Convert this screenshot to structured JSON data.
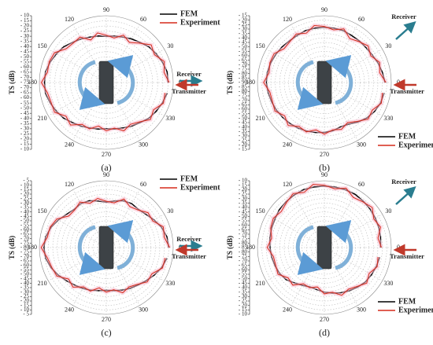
{
  "chart_data": [
    {
      "type": "polar",
      "label": "(a)",
      "ylabel": "TS (dB)",
      "legend": "upper right",
      "annotations": [
        "Receiver",
        "Transmitter"
      ],
      "theta": [
        0,
        10,
        20,
        30,
        40,
        50,
        60,
        70,
        80,
        90,
        100,
        110,
        120,
        130,
        140,
        150,
        160,
        170,
        180,
        190,
        200,
        210,
        220,
        230,
        240,
        250,
        260,
        270,
        280,
        290,
        300,
        310,
        320,
        330,
        340,
        350
      ],
      "angle_ticks": [
        0,
        30,
        60,
        90,
        120,
        150,
        180,
        210,
        240,
        270,
        300,
        330
      ],
      "rlim": [
        -75,
        -10
      ],
      "rticks": [
        {
          "value": -75,
          "label": "- 75"
        },
        {
          "value": -70,
          "label": "- 70"
        },
        {
          "value": -65,
          "label": "- 65"
        },
        {
          "value": -60,
          "label": "- 60"
        },
        {
          "value": -55,
          "label": "- 55"
        },
        {
          "value": -50,
          "label": "- 50"
        },
        {
          "value": -45,
          "label": "- 45"
        },
        {
          "value": -40,
          "label": "- 40"
        },
        {
          "value": -35,
          "label": "- 35"
        },
        {
          "value": -30,
          "label": "- 30"
        },
        {
          "value": -25,
          "label": "- 25"
        },
        {
          "value": -20,
          "label": "- 20"
        },
        {
          "value": -15,
          "label": "- 15"
        },
        {
          "value": -10,
          "label": "- 10"
        }
      ],
      "series": [
        {
          "name": "FEM",
          "color": "#000000",
          "values": [
            -15,
            -15,
            -17,
            -19,
            -21,
            -24,
            -26,
            -28,
            -29,
            -30,
            -29,
            -28,
            -26,
            -24,
            -21,
            -19,
            -17,
            -15,
            -15,
            -15,
            -17,
            -19,
            -21,
            -24,
            -26,
            -28,
            -29,
            -30,
            -29,
            -28,
            -26,
            -24,
            -21,
            -19,
            -17,
            -15
          ]
        },
        {
          "name": "Experiment",
          "color": "#d62a1a",
          "values": [
            -14,
            -18,
            -15,
            -21,
            -18,
            -25,
            -30,
            -26,
            -31,
            -29,
            -26,
            -31,
            -24,
            -25,
            -24,
            -17,
            -16,
            -17,
            -12,
            -17,
            -18,
            -17,
            -24,
            -21,
            -28,
            -27,
            -32,
            -28,
            -30,
            -25,
            -28,
            -25,
            -19,
            -22,
            -16,
            -17
          ]
        }
      ]
    },
    {
      "type": "polar",
      "label": "(b)",
      "ylabel": "TS (dB)",
      "legend": "lower right",
      "annotations": [
        "Receiver",
        "Transmitter"
      ],
      "theta": [
        0,
        10,
        20,
        30,
        40,
        50,
        60,
        70,
        80,
        90,
        100,
        110,
        120,
        130,
        140,
        150,
        160,
        170,
        180,
        190,
        200,
        210,
        220,
        230,
        240,
        250,
        260,
        270,
        280,
        290,
        300,
        310,
        320,
        330,
        340,
        350
      ],
      "angle_ticks": [
        0,
        30,
        60,
        90,
        120,
        150,
        180,
        210,
        240,
        270,
        300,
        330
      ],
      "rlim": [
        -90,
        -15
      ],
      "rticks": [
        {
          "value": -90,
          "label": "- 90"
        },
        {
          "value": -85,
          "label": "- 85"
        },
        {
          "value": -80,
          "label": "- 80"
        },
        {
          "value": -75,
          "label": "- 75"
        },
        {
          "value": -70,
          "label": "- 70"
        },
        {
          "value": -65,
          "label": "- 65"
        },
        {
          "value": -60,
          "label": "- 60"
        },
        {
          "value": -55,
          "label": "- 55"
        },
        {
          "value": -50,
          "label": "- 50"
        },
        {
          "value": -45,
          "label": "- 45"
        },
        {
          "value": -40,
          "label": "- 40"
        },
        {
          "value": -35,
          "label": "- 35"
        },
        {
          "value": -30,
          "label": "- 30"
        },
        {
          "value": -25,
          "label": "- 25"
        },
        {
          "value": -20,
          "label": "- 20"
        },
        {
          "value": -15,
          "label": "- 15"
        }
      ],
      "series": [
        {
          "name": "FEM",
          "color": "#000000",
          "values": [
            -22,
            -24,
            -26,
            -28,
            -29,
            -29,
            -29,
            -28,
            -28,
            -28,
            -28,
            -28,
            -29,
            -29,
            -28,
            -27,
            -26,
            -25,
            -25,
            -26,
            -27,
            -28,
            -29,
            -30,
            -31,
            -32,
            -33,
            -34,
            -35,
            -37,
            -36,
            -32,
            -28,
            -25,
            -23,
            -22
          ]
        },
        {
          "name": "Experiment",
          "color": "#d62a1a",
          "values": [
            -21,
            -27,
            -24,
            -30,
            -26,
            -30,
            -33,
            -26,
            -30,
            -27,
            -25,
            -31,
            -27,
            -30,
            -31,
            -25,
            -25,
            -27,
            -22,
            -28,
            -28,
            -26,
            -32,
            -27,
            -33,
            -31,
            -36,
            -32,
            -36,
            -34,
            -38,
            -33,
            -26,
            -28,
            -22,
            -24
          ]
        }
      ]
    },
    {
      "type": "polar",
      "label": "(c)",
      "ylabel": "TS (dB)",
      "legend": "upper right",
      "annotations": [
        "Receiver",
        "Transmitter"
      ],
      "theta": [
        0,
        10,
        20,
        30,
        40,
        50,
        60,
        70,
        80,
        90,
        100,
        110,
        120,
        130,
        140,
        150,
        160,
        170,
        180,
        190,
        200,
        210,
        220,
        230,
        240,
        250,
        260,
        270,
        280,
        290,
        300,
        310,
        320,
        330,
        340,
        350
      ],
      "angle_ticks": [
        0,
        30,
        60,
        90,
        120,
        150,
        180,
        210,
        240,
        270,
        300,
        330
      ],
      "rlim": [
        -80,
        -5
      ],
      "rticks": [
        {
          "value": -80,
          "label": "- 80"
        },
        {
          "value": -75,
          "label": "- 75"
        },
        {
          "value": -70,
          "label": "- 70"
        },
        {
          "value": -65,
          "label": "- 65"
        },
        {
          "value": -60,
          "label": "- 60"
        },
        {
          "value": -55,
          "label": "- 55"
        },
        {
          "value": -50,
          "label": "- 50"
        },
        {
          "value": -45,
          "label": "- 45"
        },
        {
          "value": -40,
          "label": "- 40"
        },
        {
          "value": -35,
          "label": "- 35"
        },
        {
          "value": -30,
          "label": "- 30"
        },
        {
          "value": -25,
          "label": "- 25"
        },
        {
          "value": -20,
          "label": "- 20"
        },
        {
          "value": -15,
          "label": "- 15"
        },
        {
          "value": -10,
          "label": "- 10"
        },
        {
          "value": -5,
          "label": "- 5"
        }
      ],
      "series": [
        {
          "name": "FEM",
          "color": "#000000",
          "values": [
            -10,
            -11,
            -14,
            -18,
            -22,
            -24,
            -23,
            -24,
            -27,
            -29,
            -27,
            -24,
            -23,
            -24,
            -22,
            -18,
            -14,
            -11,
            -10,
            -11,
            -14,
            -18,
            -22,
            -25,
            -27,
            -29,
            -31,
            -32,
            -31,
            -29,
            -27,
            -25,
            -22,
            -18,
            -14,
            -11
          ]
        },
        {
          "name": "Experiment",
          "color": "#d62a1a",
          "values": [
            -9,
            -14,
            -12,
            -20,
            -19,
            -25,
            -27,
            -22,
            -29,
            -28,
            -24,
            -27,
            -21,
            -25,
            -25,
            -16,
            -13,
            -13,
            -7,
            -13,
            -15,
            -16,
            -25,
            -22,
            -29,
            -28,
            -34,
            -30,
            -32,
            -26,
            -29,
            -26,
            -20,
            -21,
            -13,
            -13
          ]
        }
      ]
    },
    {
      "type": "polar",
      "label": "(d)",
      "ylabel": "TS (dB)",
      "legend": "lower right",
      "annotations": [
        "Receiver",
        "Transmitter"
      ],
      "theta": [
        0,
        10,
        20,
        30,
        40,
        50,
        60,
        70,
        80,
        90,
        100,
        110,
        120,
        130,
        140,
        150,
        160,
        170,
        180,
        190,
        200,
        210,
        220,
        230,
        240,
        250,
        260,
        270,
        280,
        290,
        300,
        310,
        320,
        330,
        340,
        350
      ],
      "angle_ticks": [
        0,
        30,
        60,
        90,
        120,
        150,
        180,
        210,
        240,
        270,
        300,
        330
      ],
      "rlim": [
        -85,
        -10
      ],
      "rticks": [
        {
          "value": -85,
          "label": "- 85"
        },
        {
          "value": -80,
          "label": "- 80"
        },
        {
          "value": -75,
          "label": "- 75"
        },
        {
          "value": -70,
          "label": "- 70"
        },
        {
          "value": -65,
          "label": "- 65"
        },
        {
          "value": -60,
          "label": "- 60"
        },
        {
          "value": -55,
          "label": "- 55"
        },
        {
          "value": -50,
          "label": "- 50"
        },
        {
          "value": -45,
          "label": "- 45"
        },
        {
          "value": -40,
          "label": "- 40"
        },
        {
          "value": -35,
          "label": "- 35"
        },
        {
          "value": -30,
          "label": "- 30"
        },
        {
          "value": -25,
          "label": "- 25"
        },
        {
          "value": -20,
          "label": "- 20"
        },
        {
          "value": -15,
          "label": "- 15"
        },
        {
          "value": -10,
          "label": "- 10"
        }
      ],
      "series": [
        {
          "name": "FEM",
          "color": "#000000",
          "values": [
            -22,
            -21,
            -20,
            -19,
            -18,
            -17,
            -16,
            -16,
            -16,
            -16,
            -16,
            -16,
            -17,
            -18,
            -19,
            -21,
            -22,
            -23,
            -24,
            -25,
            -26,
            -27,
            -29,
            -33,
            -36,
            -38,
            -37,
            -35,
            -33,
            -31,
            -29,
            -27,
            -25,
            -24,
            -23,
            -22
          ]
        },
        {
          "name": "Experiment",
          "color": "#d62a1a",
          "values": [
            -21,
            -24,
            -18,
            -21,
            -15,
            -18,
            -20,
            -14,
            -18,
            -15,
            -13,
            -19,
            -15,
            -19,
            -22,
            -19,
            -21,
            -25,
            -21,
            -27,
            -27,
            -25,
            -32,
            -30,
            -38,
            -37,
            -40,
            -33,
            -34,
            -28,
            -31,
            -28,
            -23,
            -27,
            -22,
            -24
          ]
        }
      ]
    }
  ]
}
